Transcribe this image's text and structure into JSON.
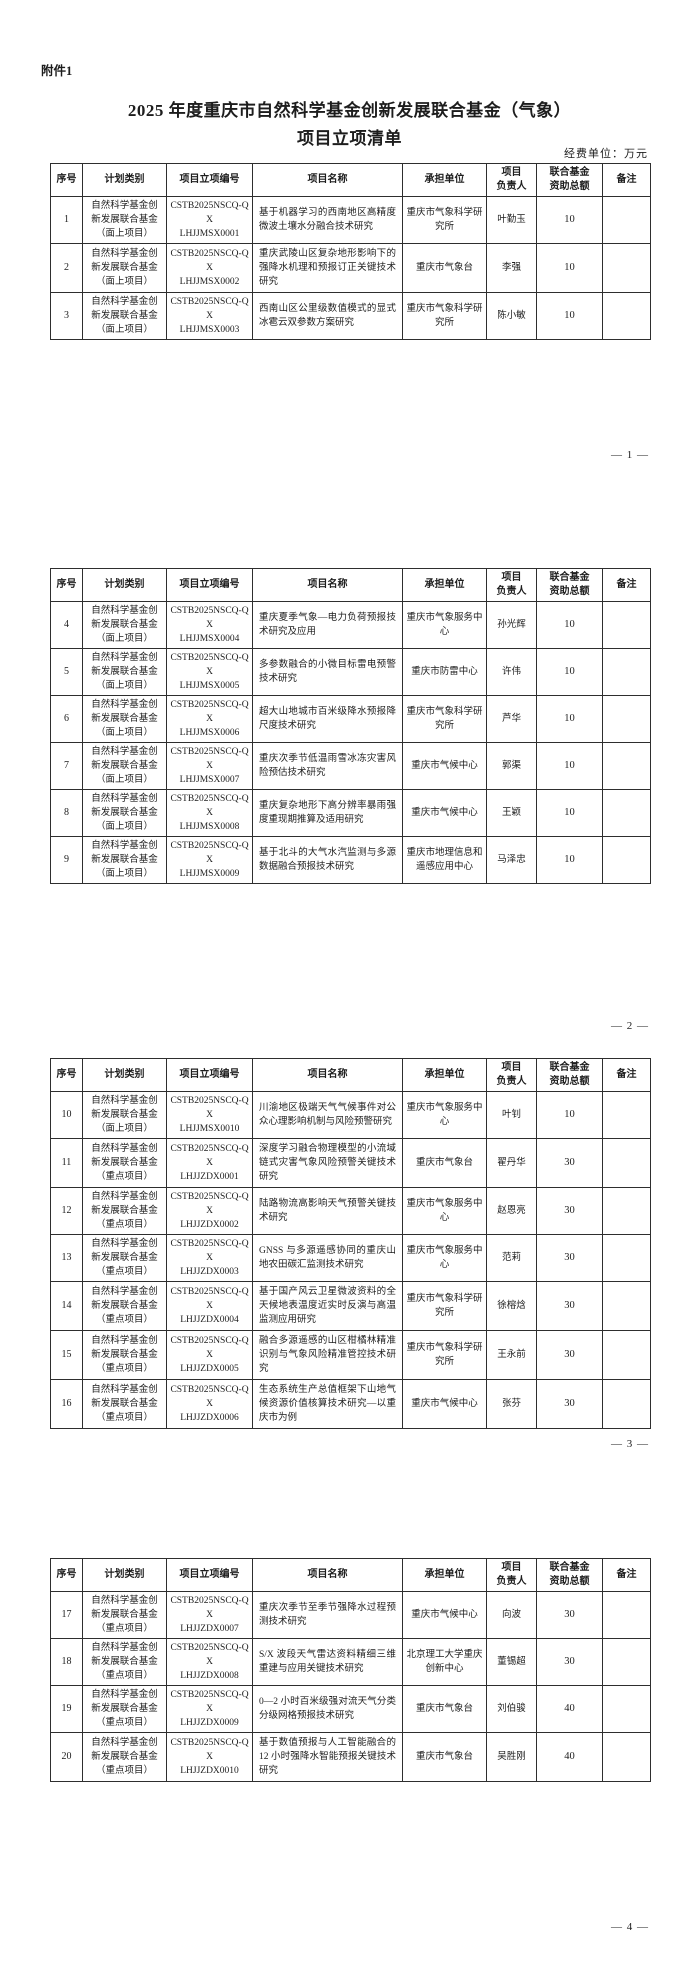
{
  "doc": {
    "attachment_label": "附件1",
    "title_line1": "2025 年度重庆市自然科学基金创新发展联合基金（气象）",
    "title_line2": "项目立项清单",
    "unit_note": "经费单位：万元"
  },
  "columns": [
    "序号",
    "计划类别",
    "项目立项编号",
    "项目名称",
    "承担单位",
    "项目\n负责人",
    "联合基金\n资助总额",
    "备注"
  ],
  "pages": [
    {
      "marker": "— 1 —",
      "rows": [
        {
          "no": "1",
          "category": "自然科学基金创\n新发展联合基金\n（面上项目）",
          "code": "CSTB2025NSCQ-QX\nLHJJMSX0001",
          "title": "基于机器学习的西南地区高精度微波土壤水分融合技术研究",
          "org": "重庆市气象科学研究所",
          "leader": "叶勤玉",
          "amount": "10",
          "note": ""
        },
        {
          "no": "2",
          "category": "自然科学基金创\n新发展联合基金\n（面上项目）",
          "code": "CSTB2025NSCQ-QX\nLHJJMSX0002",
          "title": "重庆武陵山区复杂地形影响下的强降水机理和预报订正关键技术研究",
          "org": "重庆市气象台",
          "leader": "李强",
          "amount": "10",
          "note": ""
        },
        {
          "no": "3",
          "category": "自然科学基金创\n新发展联合基金\n（面上项目）",
          "code": "CSTB2025NSCQ-QX\nLHJJMSX0003",
          "title": "西南山区公里级数值模式的显式冰雹云双参数方案研究",
          "org": "重庆市气象科学研究所",
          "leader": "陈小敏",
          "amount": "10",
          "note": ""
        }
      ]
    },
    {
      "marker": "— 2 —",
      "rows": [
        {
          "no": "4",
          "category": "自然科学基金创\n新发展联合基金\n（面上项目）",
          "code": "CSTB2025NSCQ-QX\nLHJJMSX0004",
          "title": "重庆夏季气象—电力负荷预报技术研究及应用",
          "org": "重庆市气象服务中心",
          "leader": "孙光辉",
          "amount": "10",
          "note": ""
        },
        {
          "no": "5",
          "category": "自然科学基金创\n新发展联合基金\n（面上项目）",
          "code": "CSTB2025NSCQ-QX\nLHJJMSX0005",
          "title": "多参数融合的小微目标雷电预警技术研究",
          "org": "重庆市防雷中心",
          "leader": "许伟",
          "amount": "10",
          "note": ""
        },
        {
          "no": "6",
          "category": "自然科学基金创\n新发展联合基金\n（面上项目）",
          "code": "CSTB2025NSCQ-QX\nLHJJMSX0006",
          "title": "超大山地城市百米级降水预报降尺度技术研究",
          "org": "重庆市气象科学研究所",
          "leader": "芦华",
          "amount": "10",
          "note": ""
        },
        {
          "no": "7",
          "category": "自然科学基金创\n新发展联合基金\n（面上项目）",
          "code": "CSTB2025NSCQ-QX\nLHJJMSX0007",
          "title": "重庆次季节低温雨雪冰冻灾害风险预估技术研究",
          "org": "重庆市气候中心",
          "leader": "郭渠",
          "amount": "10",
          "note": ""
        },
        {
          "no": "8",
          "category": "自然科学基金创\n新发展联合基金\n（面上项目）",
          "code": "CSTB2025NSCQ-QX\nLHJJMSX0008",
          "title": "重庆复杂地形下高分辨率暴雨强度重现期推算及适用研究",
          "org": "重庆市气候中心",
          "leader": "王颖",
          "amount": "10",
          "note": ""
        },
        {
          "no": "9",
          "category": "自然科学基金创\n新发展联合基金\n（面上项目）",
          "code": "CSTB2025NSCQ-QX\nLHJJMSX0009",
          "title": "基于北斗的大气水汽监测与多源数据融合预报技术研究",
          "org": "重庆市地理信息和遥感应用中心",
          "leader": "马泽忠",
          "amount": "10",
          "note": ""
        }
      ]
    },
    {
      "marker": "— 3 —",
      "rows": [
        {
          "no": "10",
          "category": "自然科学基金创\n新发展联合基金\n（面上项目）",
          "code": "CSTB2025NSCQ-QX\nLHJJMSX0010",
          "title": "川渝地区极端天气气候事件对公众心理影响机制与风险预警研究",
          "org": "重庆市气象服务中心",
          "leader": "叶钊",
          "amount": "10",
          "note": ""
        },
        {
          "no": "11",
          "category": "自然科学基金创\n新发展联合基金\n（重点项目）",
          "code": "CSTB2025NSCQ-QX\nLHJJZDX0001",
          "title": "深度学习融合物理模型的小流域链式灾害气象风险预警关键技术研究",
          "org": "重庆市气象台",
          "leader": "翟丹华",
          "amount": "30",
          "note": ""
        },
        {
          "no": "12",
          "category": "自然科学基金创\n新发展联合基金\n（重点项目）",
          "code": "CSTB2025NSCQ-QX\nLHJJZDX0002",
          "title": "陆路物流高影响天气预警关键技术研究",
          "org": "重庆市气象服务中心",
          "leader": "赵恩亮",
          "amount": "30",
          "note": ""
        },
        {
          "no": "13",
          "category": "自然科学基金创\n新发展联合基金\n（重点项目）",
          "code": "CSTB2025NSCQ-QX\nLHJJZDX0003",
          "title": "GNSS 与多源遥感协同的重庆山地农田碳汇监测技术研究",
          "org": "重庆市气象服务中心",
          "leader": "范莉",
          "amount": "30",
          "note": ""
        },
        {
          "no": "14",
          "category": "自然科学基金创\n新发展联合基金\n（重点项目）",
          "code": "CSTB2025NSCQ-QX\nLHJJZDX0004",
          "title": "基于国产风云卫星微波资料的全天候地表温度近实时反演与高温监测应用研究",
          "org": "重庆市气象科学研究所",
          "leader": "徐榕焓",
          "amount": "30",
          "note": ""
        },
        {
          "no": "15",
          "category": "自然科学基金创\n新发展联合基金\n（重点项目）",
          "code": "CSTB2025NSCQ-QX\nLHJJZDX0005",
          "title": "融合多源遥感的山区柑橘林精准识别与气象风险精准管控技术研究",
          "org": "重庆市气象科学研究所",
          "leader": "王永前",
          "amount": "30",
          "note": ""
        },
        {
          "no": "16",
          "category": "自然科学基金创\n新发展联合基金\n（重点项目）",
          "code": "CSTB2025NSCQ-QX\nLHJJZDX0006",
          "title": "生态系统生产总值框架下山地气候资源价值核算技术研究—以重庆市为例",
          "org": "重庆市气候中心",
          "leader": "张芬",
          "amount": "30",
          "note": ""
        }
      ]
    },
    {
      "marker": "— 4 —",
      "rows": [
        {
          "no": "17",
          "category": "自然科学基金创\n新发展联合基金\n（重点项目）",
          "code": "CSTB2025NSCQ-QX\nLHJJZDX0007",
          "title": "重庆次季节至季节强降水过程预测技术研究",
          "org": "重庆市气候中心",
          "leader": "向波",
          "amount": "30",
          "note": ""
        },
        {
          "no": "18",
          "category": "自然科学基金创\n新发展联合基金\n（重点项目）",
          "code": "CSTB2025NSCQ-QX\nLHJJZDX0008",
          "title": "S/X 波段天气雷达资料精细三维重建与应用关键技术研究",
          "org": "北京理工大学重庆创新中心",
          "leader": "董锡超",
          "amount": "30",
          "note": ""
        },
        {
          "no": "19",
          "category": "自然科学基金创\n新发展联合基金\n（重点项目）",
          "code": "CSTB2025NSCQ-QX\nLHJJZDX0009",
          "title": "0—2 小时百米级强对流天气分类分级网格预报技术研究",
          "org": "重庆市气象台",
          "leader": "刘伯骏",
          "amount": "40",
          "note": ""
        },
        {
          "no": "20",
          "category": "自然科学基金创\n新发展联合基金\n（重点项目）",
          "code": "CSTB2025NSCQ-QX\nLHJJZDX0010",
          "title": "基于数值预报与人工智能融合的 12 小时强降水智能预报关键技术研究",
          "org": "重庆市气象台",
          "leader": "吴胜刚",
          "amount": "40",
          "note": ""
        }
      ]
    }
  ]
}
